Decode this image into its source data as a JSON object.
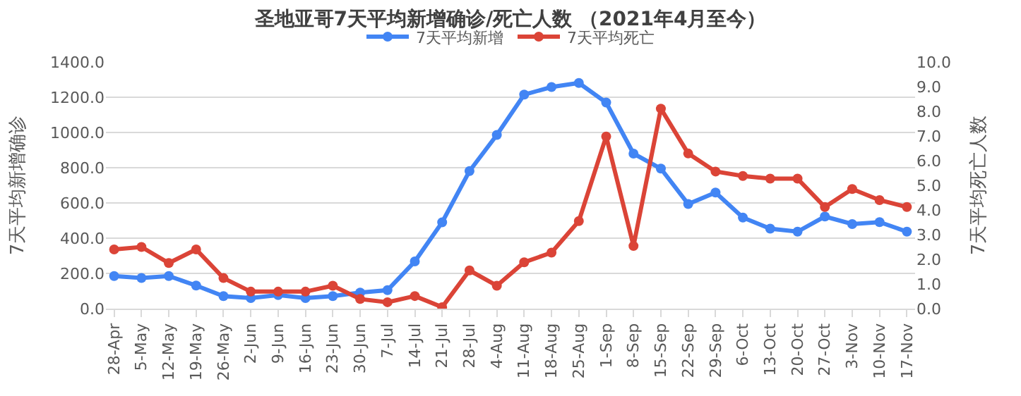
{
  "chart_data": {
    "type": "line",
    "title": "圣地亚哥7天平均新增确诊/死亡人数 （2021年4月至今）",
    "ylabel": "7天平均新增确诊",
    "y2label": "7天平均死亡人数",
    "categories": [
      "28-Apr",
      "5-May",
      "12-May",
      "19-May",
      "26-May",
      "2-Jun",
      "9-Jun",
      "16-Jun",
      "23-Jun",
      "30-Jun",
      "7-Jul",
      "14-Jul",
      "21-Jul",
      "28-Jul",
      "4-Aug",
      "11-Aug",
      "18-Aug",
      "25-Aug",
      "1-Sep",
      "8-Sep",
      "15-Sep",
      "22-Sep",
      "29-Sep",
      "6-Oct",
      "13-Oct",
      "20-Oct",
      "27-Oct",
      "3-Nov",
      "10-Nov",
      "17-Nov"
    ],
    "series": [
      {
        "name": "7天平均新增",
        "color": "#4285f4",
        "values": [
          185,
          174,
          185,
          131,
          71,
          60,
          77,
          60,
          71,
          91,
          105,
          268,
          490,
          781,
          986,
          1215,
          1258,
          1281,
          1170,
          880,
          795,
          594,
          659,
          517,
          454,
          437,
          523,
          480,
          491,
          437
        ]
      },
      {
        "name": "7天平均死亡",
        "color": "#db4437",
        "axis": "y2",
        "values": [
          2.4,
          2.5,
          1.85,
          2.4,
          1.24,
          0.69,
          0.69,
          0.69,
          0.93,
          0.39,
          0.26,
          0.51,
          0.06,
          1.55,
          0.93,
          1.88,
          2.27,
          3.55,
          6.98,
          2.54,
          8.11,
          6.29,
          5.56,
          5.38,
          5.27,
          5.27,
          4.12,
          4.85,
          4.4,
          4.12
        ]
      }
    ],
    "ylim": [
      0,
      1400
    ],
    "yticks": [
      {
        "value": 0,
        "label": "0.0"
      },
      {
        "value": 200,
        "label": "200.0"
      },
      {
        "value": 400,
        "label": "400.0"
      },
      {
        "value": 600,
        "label": "600.0"
      },
      {
        "value": 800,
        "label": "800.0"
      },
      {
        "value": 1000,
        "label": "1000.0"
      },
      {
        "value": 1200,
        "label": "1200.0"
      },
      {
        "value": 1400,
        "label": "1400.0"
      }
    ],
    "y2lim": [
      0,
      10
    ],
    "y2ticks": [
      {
        "value": 0,
        "label": "0.0"
      },
      {
        "value": 1,
        "label": "1.0"
      },
      {
        "value": 2,
        "label": "2.0"
      },
      {
        "value": 3,
        "label": "3.0"
      },
      {
        "value": 4,
        "label": "4.0"
      },
      {
        "value": 5,
        "label": "5.0"
      },
      {
        "value": 6,
        "label": "6.0"
      },
      {
        "value": 7,
        "label": "7.0"
      },
      {
        "value": 8,
        "label": "8.0"
      },
      {
        "value": 9,
        "label": "9.0"
      },
      {
        "value": 10,
        "label": "10.0"
      }
    ],
    "grid": "y",
    "legend": "top",
    "marker": "circle",
    "line_style": "solid"
  }
}
